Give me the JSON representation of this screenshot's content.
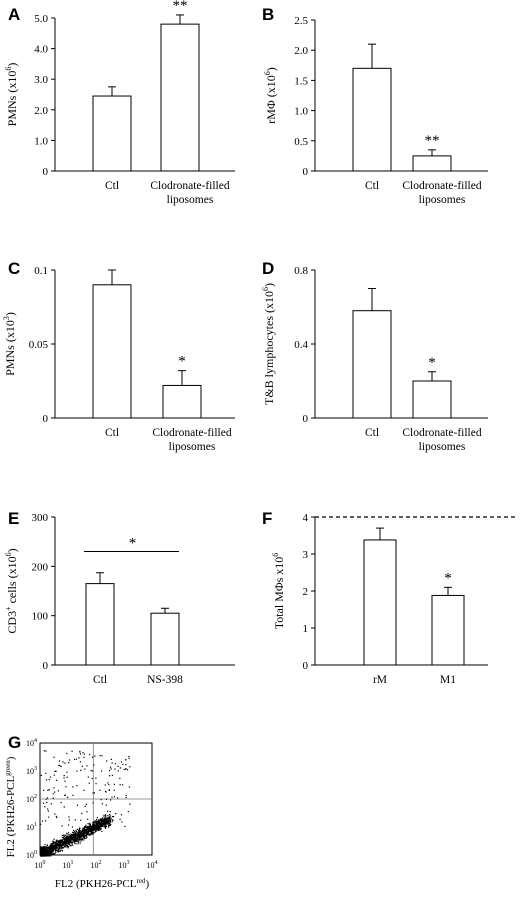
{
  "charts": [
    {
      "letter": "A",
      "type": "bar",
      "ylabel": "PMNs (x10",
      "ylabel_sup": "6",
      "ylabel_end": ")",
      "categories": [
        "Ctl",
        "Clodronate-filled liposomes"
      ],
      "values": [
        2.45,
        4.8
      ],
      "errors": [
        0.3,
        0.3
      ],
      "sig": [
        "",
        "**"
      ],
      "ylim": [
        0,
        5
      ],
      "yticks": [
        "0",
        "1.0",
        "2.0",
        "3.0",
        "4.0",
        "5.0"
      ]
    },
    {
      "letter": "B",
      "type": "bar",
      "ylabel": "rMΦ (x10",
      "ylabel_sup": "6",
      "ylabel_end": ")",
      "categories": [
        "Ctl",
        "Clodronate-filled liposomes"
      ],
      "values": [
        1.7,
        0.25
      ],
      "errors": [
        0.4,
        0.1
      ],
      "sig": [
        "",
        "**"
      ],
      "ylim": [
        0,
        2.5
      ],
      "yticks": [
        "0",
        "0.5",
        "1.0",
        "1.5",
        "2.0",
        "2.5"
      ]
    },
    {
      "letter": "C",
      "type": "bar",
      "ylabel": "PMNs (x10",
      "ylabel_sup": "3",
      "ylabel_end": ")",
      "categories": [
        "Ctl",
        "Clodronate-filled liposomes"
      ],
      "values": [
        0.09,
        0.022
      ],
      "errors": [
        0.01,
        0.01
      ],
      "sig": [
        "",
        "*"
      ],
      "ylim": [
        0,
        0.1
      ],
      "yticks": [
        "0",
        "0.05",
        "0.1"
      ]
    },
    {
      "letter": "D",
      "type": "bar",
      "ylabel": "T&B lymphocytes (x10",
      "ylabel_sup": "6",
      "ylabel_end": ")",
      "categories": [
        "Ctl",
        "Clodronate-filled liposomes"
      ],
      "values": [
        0.58,
        0.2
      ],
      "errors": [
        0.12,
        0.05
      ],
      "sig": [
        "",
        "*"
      ],
      "ylim": [
        0,
        0.8
      ],
      "yticks": [
        "0",
        "0.4",
        "0.8"
      ]
    },
    {
      "letter": "E",
      "type": "bar",
      "ylabel": "CD3",
      "ylabel_sup": "+",
      "ylabel_end": " cells (x10",
      "ylabel_sup2": "6",
      "ylabel_end2": ")",
      "categories": [
        "Ctl",
        "NS-398"
      ],
      "values": [
        165,
        105
      ],
      "errors": [
        22,
        10
      ],
      "sig_bracket": "*",
      "ylim": [
        0,
        300
      ],
      "yticks": [
        "0",
        "100",
        "200",
        "300"
      ]
    },
    {
      "letter": "F",
      "type": "bar",
      "ylabel": "Total MΦs x10",
      "ylabel_sup": "6",
      "ylabel_end": "",
      "categories": [
        "rM",
        "M1"
      ],
      "values": [
        3.38,
        1.88
      ],
      "errors": [
        0.32,
        0.22
      ],
      "sig": [
        "",
        "*"
      ],
      "ylim": [
        0,
        4
      ],
      "yticks": [
        "0",
        "1",
        "2",
        "3",
        "4"
      ],
      "ref_line": 4
    }
  ],
  "flow": {
    "letter": "G",
    "type": "scatter",
    "xlabel": "FL2 (PKH26-PCL",
    "xlabel_sup": "red",
    "xlabel_end": ")",
    "ylabel": "FL2 (PKH26-PCL",
    "ylabel_sup": "green",
    "ylabel_end": ")",
    "ticks": [
      "10",
      "10",
      "10",
      "10",
      "10"
    ],
    "tick_exps": [
      "0",
      "1",
      "2",
      "3",
      "4"
    ],
    "xlim": [
      1,
      10000
    ],
    "ylim": [
      1,
      10000
    ],
    "log_scale": true,
    "quadrant": [
      80,
      100
    ]
  }
}
